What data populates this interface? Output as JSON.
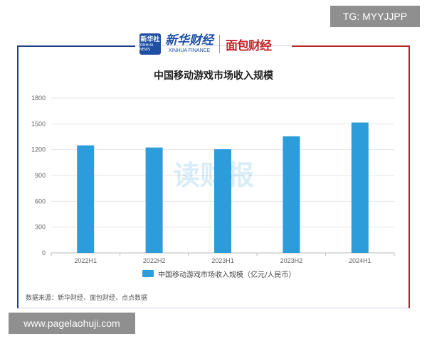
{
  "watermark_top": "TG: MYYJJPP",
  "watermark_bottom": "www.pagelaohuji.com",
  "watermark_center": "读财报",
  "logos": {
    "xinhua_badge_cn": "新华社",
    "xinhua_badge_en": "XINHUA NEWS",
    "xinhua_cn": "新华财经",
    "xinhua_en": "XINHUA FINANCE",
    "mianbao": "面包财经"
  },
  "source_text": "数据来源：新华财经、面包财经、点点数据",
  "colors": {
    "bar": "#2d9cdb",
    "grid": "#e6e6e6",
    "axis_text": "#666666",
    "brand_blue": "#233e8a",
    "brand_red": "#b3262d"
  },
  "chart_data": {
    "type": "bar",
    "title": "中国移动游戏市场收入规模",
    "categories": [
      "2022H1",
      "2022H2",
      "2023H1",
      "2023H2",
      "2024H1"
    ],
    "series": [
      {
        "name": "中国移动游戏市场收入规模（亿元/人民币）",
        "values": [
          1250,
          1225,
          1205,
          1355,
          1515
        ]
      }
    ],
    "ylim": [
      0,
      1800
    ],
    "yticks": [
      "0",
      "300",
      "600",
      "900",
      "1200",
      "1500",
      "1800"
    ],
    "xlabel": "",
    "ylabel": "",
    "grid": true,
    "legend_position": "bottom"
  }
}
